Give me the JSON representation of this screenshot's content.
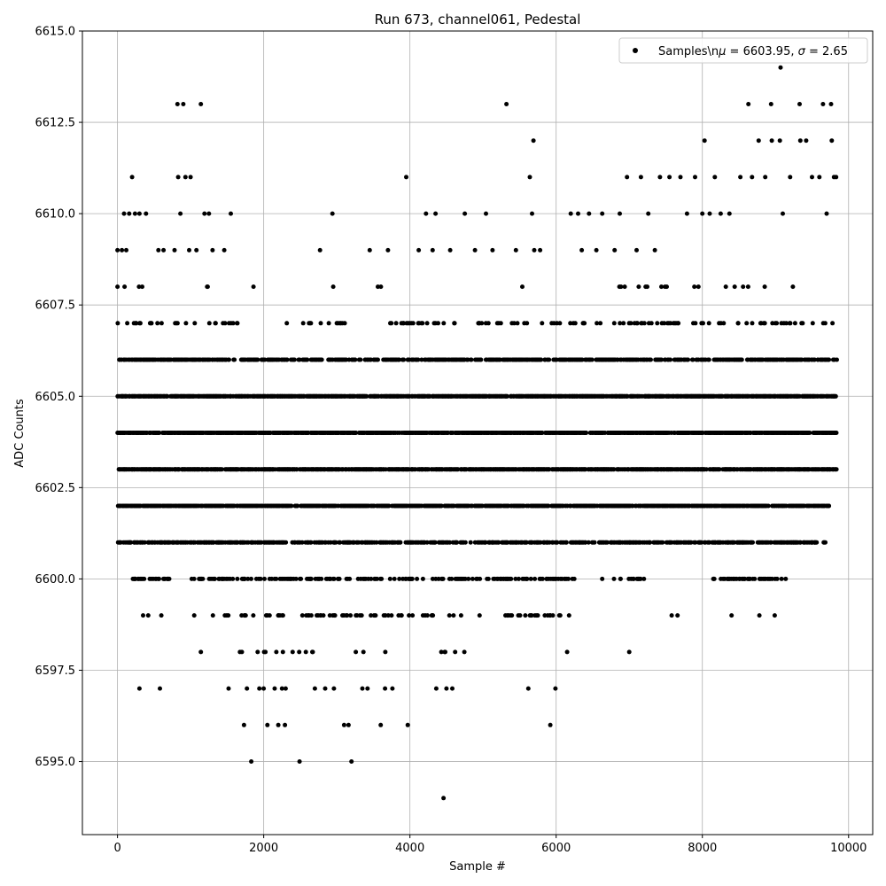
{
  "chart_data": {
    "type": "scatter",
    "title": "Run 673, channel061, Pedestal",
    "xlabel": "Sample #",
    "ylabel": "ADC Counts",
    "xlim": [
      -480,
      10330
    ],
    "ylim": [
      6593.0,
      6615.0
    ],
    "x_ticks": [
      0,
      2000,
      4000,
      6000,
      8000,
      10000
    ],
    "x_tick_labels": [
      "0",
      "2000",
      "4000",
      "6000",
      "8000",
      "10000"
    ],
    "y_ticks": [
      6595.0,
      6597.5,
      6600.0,
      6602.5,
      6605.0,
      6607.5,
      6610.0,
      6612.5,
      6615.0
    ],
    "y_tick_labels": [
      "6595.0",
      "6597.5",
      "6600.0",
      "6602.5",
      "6605.0",
      "6607.5",
      "6610.0",
      "6612.5",
      "6615.0"
    ],
    "grid": true,
    "legend": {
      "placement": "top-right",
      "entries": [
        "Samples\\n$\\mu$ = 6603.95, $\\sigma$ = 2.65"
      ]
    },
    "legend_display": [
      "Samples\\n",
      "μ",
      " = 6603.95, ",
      "σ",
      " = 2.65"
    ],
    "marker_color": "#000000",
    "series": [
      {
        "name": "Samples\\n$\\mu$ = 6603.95, $\\sigma$ = 2.65",
        "x_range": [
          0,
          9830
        ],
        "count": 9830,
        "approximate_rows": [
          {
            "y": 6608,
            "ranges": [
              [
                0,
                900
              ],
              [
                1000,
                1400
              ],
              [
                2700,
                2950
              ],
              [
                3500,
                3600
              ],
              [
                4200,
                4300
              ],
              [
                4700,
                4800
              ],
              [
                5200,
                5800
              ],
              [
                6000,
                9830
              ]
            ],
            "density": 0.04
          },
          {
            "y": 6607,
            "ranges": [
              [
                0,
                1700
              ],
              [
                2300,
                3100
              ],
              [
                3700,
                4700
              ],
              [
                4900,
                5600
              ],
              [
                5700,
                9830
              ]
            ],
            "density": 0.18
          },
          {
            "y": 6606,
            "ranges": [
              [
                0,
                9830
              ]
            ],
            "density": 0.55
          },
          {
            "y": 6605,
            "ranges": [
              [
                0,
                9830
              ]
            ],
            "density": 0.8
          },
          {
            "y": 6604,
            "ranges": [
              [
                0,
                9830
              ]
            ],
            "density": 0.8
          },
          {
            "y": 6603,
            "ranges": [
              [
                0,
                9830
              ]
            ],
            "density": 0.8
          },
          {
            "y": 6602,
            "ranges": [
              [
                0,
                9750
              ]
            ],
            "density": 0.75
          },
          {
            "y": 6601,
            "ranges": [
              [
                0,
                9700
              ]
            ],
            "density": 0.55
          },
          {
            "y": 6600,
            "ranges": [
              [
                200,
                700
              ],
              [
                1000,
                6300
              ],
              [
                6600,
                7200
              ],
              [
                8100,
                9100
              ]
            ],
            "density": 0.3
          },
          {
            "y": 6599,
            "ranges": [
              [
                1200,
                5000
              ],
              [
                5300,
                6200
              ]
            ],
            "density": 0.15
          },
          {
            "y": 6598,
            "ranges": [
              [
                1600,
                2700
              ],
              [
                3100,
                3700
              ],
              [
                4400,
                4800
              ]
            ],
            "density": 0.08
          }
        ],
        "points": [
          [
            0,
            6609
          ],
          [
            60,
            6609
          ],
          [
            120,
            6609
          ],
          [
            160,
            6610
          ],
          [
            200,
            6611
          ],
          [
            240,
            6610
          ],
          [
            300,
            6610
          ],
          [
            390,
            6610
          ],
          [
            90,
            6610
          ],
          [
            560,
            6609
          ],
          [
            630,
            6609
          ],
          [
            780,
            6609
          ],
          [
            820,
            6613
          ],
          [
            830,
            6611
          ],
          [
            860,
            6610
          ],
          [
            900,
            6613
          ],
          [
            930,
            6611
          ],
          [
            980,
            6609
          ],
          [
            1000,
            6611
          ],
          [
            1080,
            6609
          ],
          [
            1140,
            6613
          ],
          [
            1190,
            6610
          ],
          [
            1250,
            6610
          ],
          [
            1300,
            6609
          ],
          [
            1460,
            6609
          ],
          [
            1550,
            6610
          ],
          [
            1860,
            6608
          ],
          [
            300,
            6597
          ],
          [
            580,
            6597
          ],
          [
            240,
            6600
          ],
          [
            280,
            6600
          ],
          [
            350,
            6599
          ],
          [
            420,
            6599
          ],
          [
            560,
            6600
          ],
          [
            600,
            6599
          ],
          [
            640,
            6600
          ],
          [
            680,
            6600
          ],
          [
            1050,
            6599
          ],
          [
            1140,
            6598
          ],
          [
            1520,
            6597
          ],
          [
            1730,
            6596
          ],
          [
            1770,
            6597
          ],
          [
            1830,
            6595
          ],
          [
            1940,
            6597
          ],
          [
            2000,
            6597
          ],
          [
            2050,
            6596
          ],
          [
            2150,
            6597
          ],
          [
            2200,
            6596
          ],
          [
            2250,
            6597
          ],
          [
            2290,
            6596
          ],
          [
            2300,
            6597
          ],
          [
            2490,
            6595
          ],
          [
            2700,
            6597
          ],
          [
            2840,
            6597
          ],
          [
            2960,
            6597
          ],
          [
            3100,
            6596
          ],
          [
            3160,
            6596
          ],
          [
            3200,
            6595
          ],
          [
            3350,
            6597
          ],
          [
            3420,
            6597
          ],
          [
            3600,
            6596
          ],
          [
            3660,
            6597
          ],
          [
            3760,
            6597
          ],
          [
            3970,
            6596
          ],
          [
            4360,
            6597
          ],
          [
            4460,
            6594
          ],
          [
            4500,
            6597
          ],
          [
            4580,
            6597
          ],
          [
            2940,
            6610
          ],
          [
            2770,
            6609
          ],
          [
            3450,
            6609
          ],
          [
            3700,
            6609
          ],
          [
            3950,
            6611
          ],
          [
            4120,
            6609
          ],
          [
            4220,
            6610
          ],
          [
            4310,
            6609
          ],
          [
            4350,
            6610
          ],
          [
            4550,
            6609
          ],
          [
            4750,
            6610
          ],
          [
            4890,
            6609
          ],
          [
            5040,
            6610
          ],
          [
            5130,
            6609
          ],
          [
            5320,
            6613
          ],
          [
            5450,
            6609
          ],
          [
            5640,
            6611
          ],
          [
            5670,
            6610
          ],
          [
            5690,
            6612
          ],
          [
            5700,
            6609
          ],
          [
            5780,
            6609
          ],
          [
            5620,
            6597
          ],
          [
            5920,
            6596
          ],
          [
            5990,
            6597
          ],
          [
            6150,
            6598
          ],
          [
            6200,
            6610
          ],
          [
            6300,
            6610
          ],
          [
            6350,
            6609
          ],
          [
            6450,
            6610
          ],
          [
            6550,
            6609
          ],
          [
            6630,
            6610
          ],
          [
            6800,
            6609
          ],
          [
            6870,
            6610
          ],
          [
            6970,
            6611
          ],
          [
            7000,
            6598
          ],
          [
            7100,
            6609
          ],
          [
            7160,
            6611
          ],
          [
            7260,
            6610
          ],
          [
            7350,
            6609
          ],
          [
            7420,
            6611
          ],
          [
            7550,
            6611
          ],
          [
            7580,
            6599
          ],
          [
            7660,
            6599
          ],
          [
            7700,
            6611
          ],
          [
            7790,
            6610
          ],
          [
            7900,
            6611
          ],
          [
            8000,
            6610
          ],
          [
            8030,
            6612
          ],
          [
            8100,
            6610
          ],
          [
            8170,
            6611
          ],
          [
            8250,
            6610
          ],
          [
            8370,
            6610
          ],
          [
            8520,
            6611
          ],
          [
            8630,
            6613
          ],
          [
            8680,
            6611
          ],
          [
            8770,
            6612
          ],
          [
            8860,
            6611
          ],
          [
            8940,
            6613
          ],
          [
            8950,
            6612
          ],
          [
            9060,
            6612
          ],
          [
            9070,
            6614
          ],
          [
            9100,
            6610
          ],
          [
            9200,
            6611
          ],
          [
            9330,
            6613
          ],
          [
            9340,
            6612
          ],
          [
            9420,
            6612
          ],
          [
            9500,
            6611
          ],
          [
            9600,
            6611
          ],
          [
            9650,
            6613
          ],
          [
            9700,
            6610
          ],
          [
            9760,
            6613
          ],
          [
            9770,
            6612
          ],
          [
            9800,
            6611
          ],
          [
            9830,
            6611
          ],
          [
            8150,
            6600
          ],
          [
            8350,
            6600
          ],
          [
            8400,
            6599
          ],
          [
            8780,
            6599
          ],
          [
            8850,
            6600
          ],
          [
            8990,
            6599
          ],
          [
            9140,
            6600
          ],
          [
            9540,
            6601
          ],
          [
            9660,
            6601
          ],
          [
            9720,
            6602
          ]
        ]
      }
    ]
  }
}
